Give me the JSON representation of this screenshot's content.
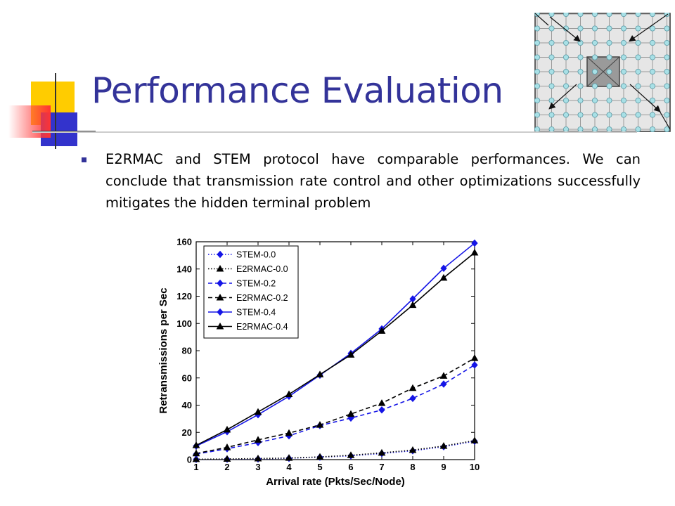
{
  "slide": {
    "title": "Performance Evaluation",
    "bullet_text": "E2RMAC and STEM protocol have comparable performances. We can conclude that transmission rate control and other optimizations successfully mitigates the hidden terminal problem"
  },
  "colors": {
    "title": "#333399",
    "stem": "#1515e6",
    "e2rmac": "#000000",
    "accent_yellow": "#ffcc00",
    "accent_red": "#ff3333",
    "accent_blue": "#3333cc"
  },
  "chart_data": {
    "type": "line",
    "title": "",
    "xlabel": "Arrival rate (Pkts/Sec/Node)",
    "ylabel": "Retransmissions per Sec",
    "xlim": [
      1,
      10
    ],
    "ylim": [
      0,
      160
    ],
    "xticks": [
      1,
      2,
      3,
      4,
      5,
      6,
      7,
      8,
      9,
      10
    ],
    "yticks": [
      0,
      20,
      40,
      60,
      80,
      100,
      120,
      140,
      160
    ],
    "grid": false,
    "legend": "top-left",
    "x": [
      1,
      2,
      3,
      4,
      5,
      6,
      7,
      8,
      9,
      10
    ],
    "series": [
      {
        "name": "STEM-0.0",
        "color": "#1515e6",
        "dash": "dotted",
        "marker": "diamond",
        "values": [
          0.2,
          0.3,
          0.5,
          1,
          1.8,
          2.8,
          4.5,
          6.5,
          9.5,
          13.5
        ]
      },
      {
        "name": "E2RMAC-0.0",
        "color": "#000000",
        "dash": "dotted",
        "marker": "triangle",
        "values": [
          0.3,
          0.5,
          0.8,
          1.2,
          2,
          3.2,
          5,
          7,
          10,
          14
        ]
      },
      {
        "name": "STEM-0.2",
        "color": "#1515e6",
        "dash": "dashed",
        "marker": "diamond",
        "values": [
          4,
          8,
          12.5,
          17.5,
          25,
          30.5,
          36.5,
          45,
          55.5,
          69.5
        ]
      },
      {
        "name": "E2RMAC-0.2",
        "color": "#000000",
        "dash": "dashed",
        "marker": "triangle",
        "values": [
          4.5,
          9,
          14.5,
          19.5,
          25.5,
          33.5,
          41.5,
          52.5,
          61.5,
          74.5
        ]
      },
      {
        "name": "STEM-0.4",
        "color": "#1515e6",
        "dash": "solid",
        "marker": "diamond",
        "values": [
          10,
          20.5,
          33,
          46.5,
          62,
          78,
          96,
          118,
          140.5,
          159
        ]
      },
      {
        "name": "E2RMAC-0.4",
        "color": "#000000",
        "dash": "solid",
        "marker": "triangle",
        "values": [
          10.5,
          22,
          35,
          48,
          62.5,
          77,
          94.5,
          113.5,
          133.5,
          152
        ]
      }
    ]
  }
}
